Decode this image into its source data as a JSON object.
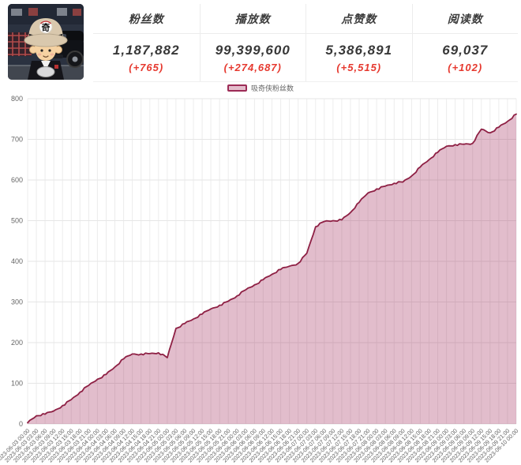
{
  "avatar": {
    "description": "cartoon boy in tan fedora in front of dark street with vintage car",
    "hat_character": "奇"
  },
  "stats": {
    "delta_color": "#e6392f",
    "cards": [
      {
        "label": "粉丝数",
        "value": "1,187,882",
        "delta": "(+765)"
      },
      {
        "label": "播放数",
        "value": "99,399,600",
        "delta": "(+274,687)"
      },
      {
        "label": "点赞数",
        "value": "5,386,891",
        "delta": "(+5,515)"
      },
      {
        "label": "阅读数",
        "value": "69,037",
        "delta": "(+102)"
      }
    ]
  },
  "chart_data": {
    "type": "area",
    "title": "",
    "xlabel": "",
    "ylabel": "",
    "ylim": [
      0,
      800
    ],
    "yticks": [
      0,
      100,
      200,
      300,
      400,
      500,
      600,
      700,
      800
    ],
    "grid": true,
    "legend_position": "top",
    "line_color": "#8e2044",
    "fill_color": "rgba(160,38,85,0.30)",
    "legend_swatch_fill": "#e3bccb",
    "legend_swatch_border": "#9c2b56",
    "x": [
      "2023-06-03 00:00",
      "2023-06-03 03:00",
      "2023-06-03 06:00",
      "2023-06-03 09:00",
      "2023-06-03 12:00",
      "2023-06-03 15:00",
      "2023-06-03 18:00",
      "2023-06-03 21:00",
      "2023-06-04 00:00",
      "2023-06-04 03:00",
      "2023-06-04 06:00",
      "2023-06-04 09:00",
      "2023-06-04 12:00",
      "2023-06-04 15:00",
      "2023-06-04 18:00",
      "2023-06-04 21:00",
      "2023-06-05 00:00",
      "2023-06-05 03:00",
      "2023-06-05 06:00",
      "2023-06-05 09:00",
      "2023-06-05 12:00",
      "2023-06-05 15:00",
      "2023-06-05 18:00",
      "2023-06-05 21:00",
      "2023-06-06 00:00",
      "2023-06-06 03:00",
      "2023-06-06 06:00",
      "2023-06-06 09:00",
      "2023-06-06 12:00",
      "2023-06-06 15:00",
      "2023-06-06 18:00",
      "2023-06-06 21:00",
      "2023-06-07 00:00",
      "2023-06-07 03:00",
      "2023-06-07 06:00",
      "2023-06-07 09:00",
      "2023-06-07 12:00",
      "2023-06-07 15:00",
      "2023-06-07 18:00",
      "2023-06-07 21:00",
      "2023-06-08 00:00",
      "2023-06-08 03:00",
      "2023-06-08 06:00",
      "2023-06-08 09:00",
      "2023-06-08 12:00",
      "2023-06-08 15:00",
      "2023-06-08 18:00",
      "2023-06-08 21:00",
      "2023-06-09 00:00",
      "2023-06-09 03:00",
      "2023-06-09 06:00",
      "2023-06-09 09:00",
      "2023-06-09 12:00",
      "2023-06-09 15:00",
      "2023-06-09 18:00",
      "2023-06-09 21:00",
      "2023-06-10 00:00"
    ],
    "series": [
      {
        "name": "吸奇侠粉丝数",
        "values": [
          3,
          20,
          24,
          32,
          45,
          60,
          78,
          95,
          110,
          122,
          140,
          160,
          172,
          172,
          173,
          175,
          163,
          235,
          247,
          258,
          270,
          283,
          292,
          302,
          315,
          330,
          342,
          355,
          368,
          380,
          388,
          395,
          420,
          485,
          498,
          500,
          502,
          520,
          545,
          568,
          578,
          585,
          592,
          595,
          610,
          632,
          650,
          668,
          683,
          687,
          688,
          690,
          725,
          716,
          730,
          744,
          762
        ]
      }
    ]
  }
}
